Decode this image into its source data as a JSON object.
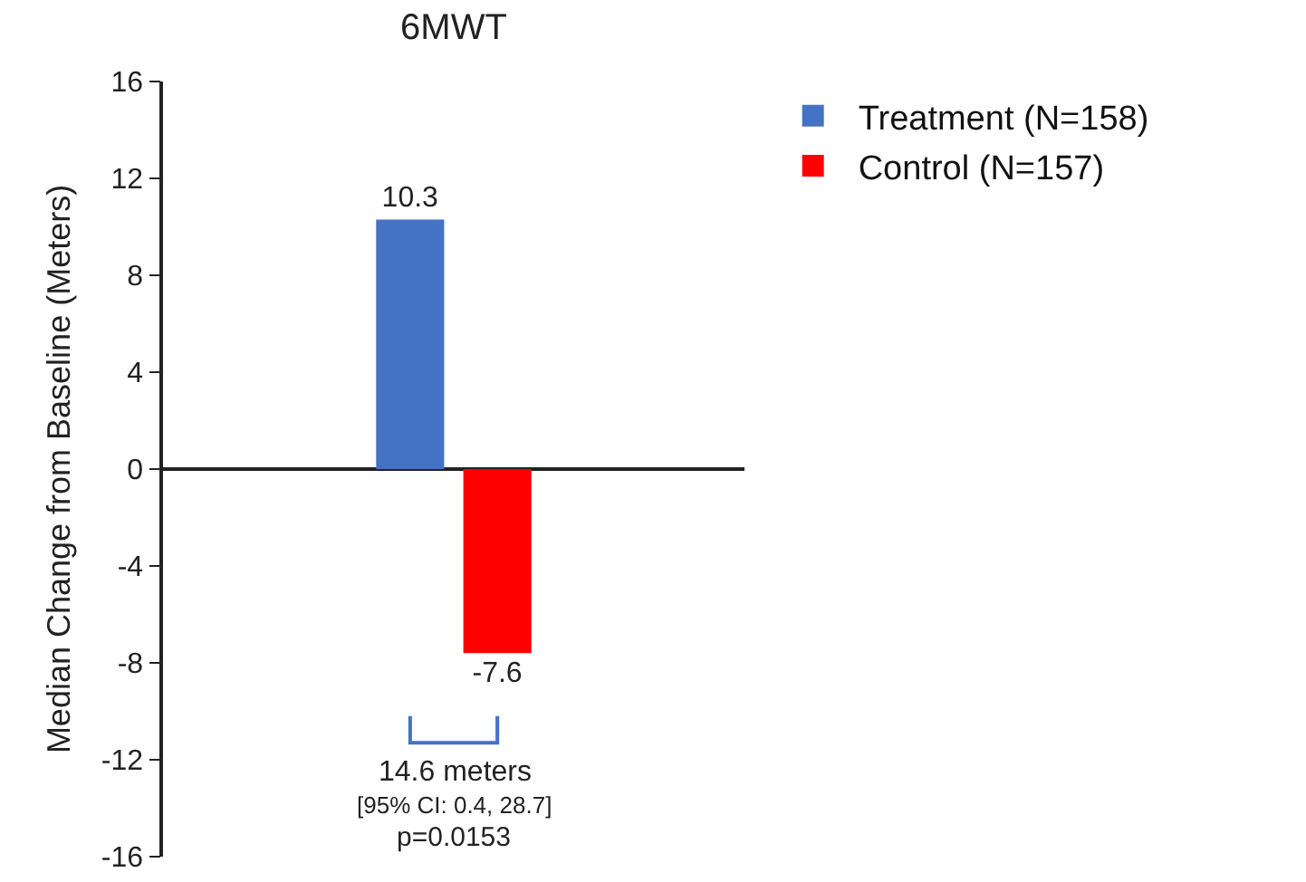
{
  "chart_data": {
    "type": "bar",
    "title": "6MWT",
    "ylabel": "Median Change from Baseline (Meters)",
    "categories": [
      null
    ],
    "series": [
      {
        "name": "Treatment (N=158)",
        "color": "#4472c4",
        "values": [
          10.3
        ]
      },
      {
        "name": "Control (N=157)",
        "color": "#ff0000",
        "values": [
          -7.6
        ]
      }
    ],
    "ylim": [
      -16,
      16
    ],
    "yticks": [
      -16,
      -12,
      -8,
      -4,
      0,
      4,
      8,
      12,
      16
    ],
    "data_labels": true,
    "legend": "top right",
    "tick_labels": "y",
    "annotations": [
      "14.6 meters",
      "[95% CI: 0.4, 28.7]",
      "p=0.0153"
    ]
  }
}
